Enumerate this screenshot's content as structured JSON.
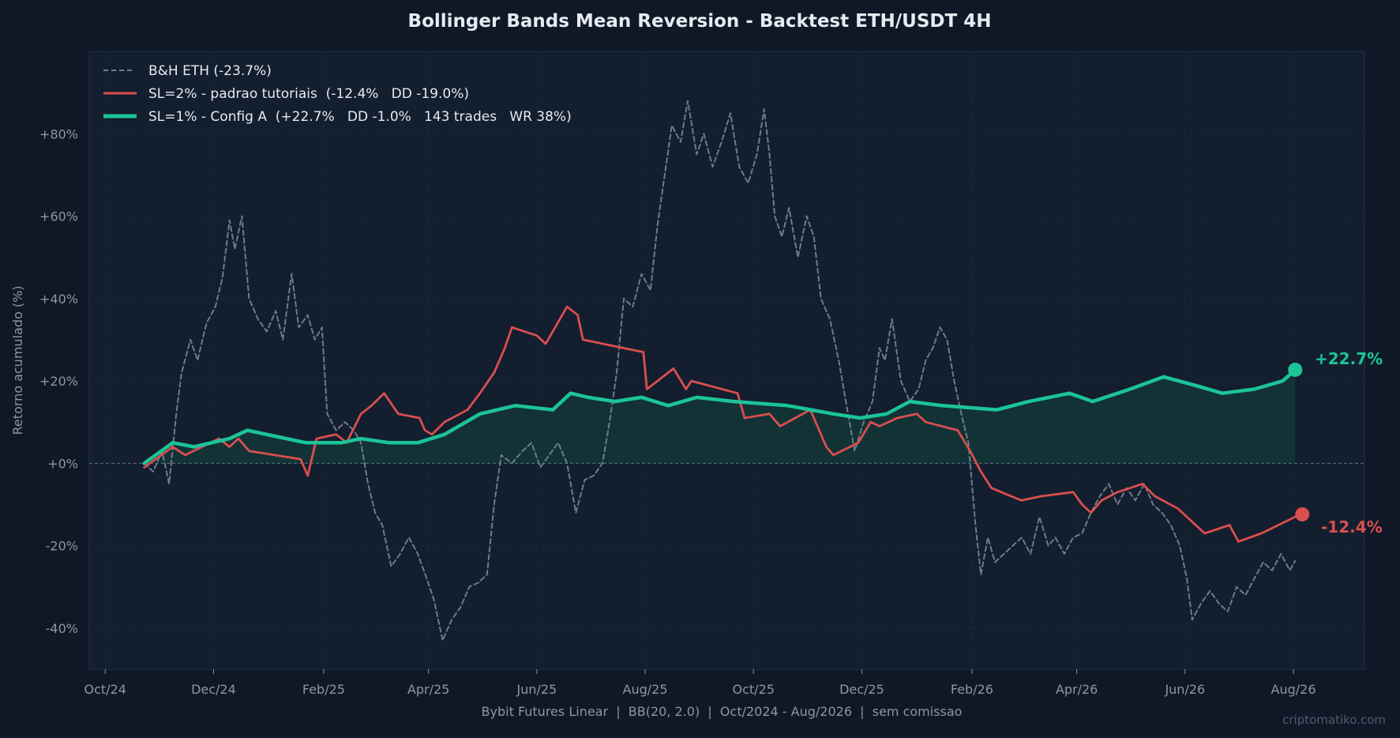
{
  "page": {
    "title": "Bollinger Bands Mean Reversion - Backtest ETH/USDT 4H",
    "caption": "Bybit Futures Linear  |  BB(20, 2.0)  |  Oct/2024 - Aug/2026  |  sem comissao",
    "watermark": "criptomatiko.com"
  },
  "colors": {
    "background": "#0f1826",
    "plot_background": "#131e2e",
    "grid": "#1e2b3c",
    "axis_text": "#8b97a6",
    "bh": "#6f7b8c",
    "sl2": "#d94f4f",
    "sl1": "#1cc498",
    "fill": "#133a3a"
  },
  "chart_data": {
    "type": "line",
    "title": "Bollinger Bands Mean Reversion - Backtest ETH/USDT 4H",
    "xlabel": "",
    "ylabel": "Retorno acumulado (%)",
    "x_range": [
      "2024-09-22",
      "2026-09-10"
    ],
    "ylim": [
      -50,
      100
    ],
    "x_ticks": [
      {
        "date": "2024-10-01",
        "label": "Oct/24"
      },
      {
        "date": "2024-12-01",
        "label": "Dec/24"
      },
      {
        "date": "2025-02-01",
        "label": "Feb/25"
      },
      {
        "date": "2025-04-01",
        "label": "Apr/25"
      },
      {
        "date": "2025-06-01",
        "label": "Jun/25"
      },
      {
        "date": "2025-08-01",
        "label": "Aug/25"
      },
      {
        "date": "2025-10-01",
        "label": "Oct/25"
      },
      {
        "date": "2025-12-01",
        "label": "Dec/25"
      },
      {
        "date": "2026-02-01",
        "label": "Feb/26"
      },
      {
        "date": "2026-04-01",
        "label": "Apr/26"
      },
      {
        "date": "2026-06-01",
        "label": "Jun/26"
      },
      {
        "date": "2026-08-01",
        "label": "Aug/26"
      }
    ],
    "y_ticks": [
      {
        "value": -40,
        "label": "-40%"
      },
      {
        "value": -20,
        "label": "-20%"
      },
      {
        "value": 0,
        "label": "+0%"
      },
      {
        "value": 20,
        "label": "+20%"
      },
      {
        "value": 40,
        "label": "+40%"
      },
      {
        "value": 60,
        "label": "+60%"
      },
      {
        "value": 80,
        "label": "+80%"
      }
    ],
    "grid": true,
    "legend_position": "top-left",
    "series": [
      {
        "key": "bh",
        "name": "B&H ETH (-23.7%)",
        "style": "dashed",
        "points": [
          [
            "2024-10-23",
            0
          ],
          [
            "2024-10-28",
            -2
          ],
          [
            "2024-11-02",
            3
          ],
          [
            "2024-11-06",
            -5
          ],
          [
            "2024-11-10",
            12
          ],
          [
            "2024-11-13",
            22
          ],
          [
            "2024-11-18",
            30
          ],
          [
            "2024-11-22",
            25
          ],
          [
            "2024-11-27",
            34
          ],
          [
            "2024-12-02",
            38
          ],
          [
            "2024-12-06",
            45
          ],
          [
            "2024-12-10",
            59
          ],
          [
            "2024-12-13",
            52
          ],
          [
            "2024-12-17",
            60
          ],
          [
            "2024-12-21",
            40
          ],
          [
            "2024-12-26",
            35
          ],
          [
            "2024-12-31",
            32
          ],
          [
            "2025-01-05",
            37
          ],
          [
            "2025-01-09",
            30
          ],
          [
            "2025-01-14",
            46
          ],
          [
            "2025-01-18",
            33
          ],
          [
            "2025-01-23",
            36
          ],
          [
            "2025-01-27",
            30
          ],
          [
            "2025-01-31",
            33
          ],
          [
            "2025-02-03",
            12
          ],
          [
            "2025-02-08",
            8
          ],
          [
            "2025-02-13",
            10
          ],
          [
            "2025-02-18",
            8
          ],
          [
            "2025-02-22",
            5
          ],
          [
            "2025-02-26",
            -5
          ],
          [
            "2025-03-02",
            -12
          ],
          [
            "2025-03-06",
            -15
          ],
          [
            "2025-03-11",
            -25
          ],
          [
            "2025-03-16",
            -22
          ],
          [
            "2025-03-21",
            -18
          ],
          [
            "2025-03-26",
            -22
          ],
          [
            "2025-03-31",
            -28
          ],
          [
            "2025-04-04",
            -33
          ],
          [
            "2025-04-09",
            -43
          ],
          [
            "2025-04-14",
            -38
          ],
          [
            "2025-04-19",
            -35
          ],
          [
            "2025-04-24",
            -30
          ],
          [
            "2025-04-29",
            -29
          ],
          [
            "2025-05-04",
            -27
          ],
          [
            "2025-05-08",
            -10
          ],
          [
            "2025-05-12",
            2
          ],
          [
            "2025-05-18",
            0
          ],
          [
            "2025-05-24",
            3
          ],
          [
            "2025-05-29",
            5
          ],
          [
            "2025-06-03",
            -1
          ],
          [
            "2025-06-08",
            2
          ],
          [
            "2025-06-13",
            5
          ],
          [
            "2025-06-18",
            0
          ],
          [
            "2025-06-23",
            -12
          ],
          [
            "2025-06-28",
            -4
          ],
          [
            "2025-07-03",
            -3
          ],
          [
            "2025-07-08",
            0
          ],
          [
            "2025-07-12",
            10
          ],
          [
            "2025-07-16",
            22
          ],
          [
            "2025-07-20",
            40
          ],
          [
            "2025-07-25",
            38
          ],
          [
            "2025-07-30",
            46
          ],
          [
            "2025-08-04",
            42
          ],
          [
            "2025-08-08",
            58
          ],
          [
            "2025-08-12",
            70
          ],
          [
            "2025-08-16",
            82
          ],
          [
            "2025-08-21",
            78
          ],
          [
            "2025-08-25",
            88
          ],
          [
            "2025-08-30",
            75
          ],
          [
            "2025-09-03",
            80
          ],
          [
            "2025-09-08",
            72
          ],
          [
            "2025-09-13",
            78
          ],
          [
            "2025-09-18",
            85
          ],
          [
            "2025-09-23",
            72
          ],
          [
            "2025-09-28",
            68
          ],
          [
            "2025-10-03",
            75
          ],
          [
            "2025-10-07",
            86
          ],
          [
            "2025-10-10",
            75
          ],
          [
            "2025-10-13",
            60
          ],
          [
            "2025-10-17",
            55
          ],
          [
            "2025-10-21",
            62
          ],
          [
            "2025-10-26",
            50
          ],
          [
            "2025-10-31",
            60
          ],
          [
            "2025-11-04",
            55
          ],
          [
            "2025-11-08",
            40
          ],
          [
            "2025-11-13",
            35
          ],
          [
            "2025-11-18",
            25
          ],
          [
            "2025-11-22",
            15
          ],
          [
            "2025-11-27",
            3
          ],
          [
            "2025-12-02",
            10
          ],
          [
            "2025-12-07",
            15
          ],
          [
            "2025-12-11",
            28
          ],
          [
            "2025-12-14",
            25
          ],
          [
            "2025-12-18",
            35
          ],
          [
            "2025-12-23",
            20
          ],
          [
            "2025-12-28",
            15
          ],
          [
            "2026-01-02",
            18
          ],
          [
            "2026-01-06",
            25
          ],
          [
            "2026-01-10",
            28
          ],
          [
            "2026-01-14",
            33
          ],
          [
            "2026-01-18",
            30
          ],
          [
            "2026-01-22",
            20
          ],
          [
            "2026-01-26",
            12
          ],
          [
            "2026-01-30",
            5
          ],
          [
            "2026-02-03",
            -15
          ],
          [
            "2026-02-06",
            -27
          ],
          [
            "2026-02-10",
            -18
          ],
          [
            "2026-02-14",
            -24
          ],
          [
            "2026-02-19",
            -22
          ],
          [
            "2026-02-24",
            -20
          ],
          [
            "2026-03-01",
            -18
          ],
          [
            "2026-03-06",
            -22
          ],
          [
            "2026-03-11",
            -13
          ],
          [
            "2026-03-16",
            -20
          ],
          [
            "2026-03-20",
            -18
          ],
          [
            "2026-03-25",
            -22
          ],
          [
            "2026-03-30",
            -18
          ],
          [
            "2026-04-04",
            -17
          ],
          [
            "2026-04-09",
            -12
          ],
          [
            "2026-04-14",
            -8
          ],
          [
            "2026-04-19",
            -5
          ],
          [
            "2026-04-24",
            -10
          ],
          [
            "2026-04-29",
            -6
          ],
          [
            "2026-05-04",
            -9
          ],
          [
            "2026-05-09",
            -5
          ],
          [
            "2026-05-14",
            -10
          ],
          [
            "2026-05-19",
            -12
          ],
          [
            "2026-05-24",
            -15
          ],
          [
            "2026-05-29",
            -20
          ],
          [
            "2026-06-02",
            -28
          ],
          [
            "2026-06-05",
            -38
          ],
          [
            "2026-06-10",
            -34
          ],
          [
            "2026-06-15",
            -31
          ],
          [
            "2026-06-20",
            -34
          ],
          [
            "2026-06-25",
            -36
          ],
          [
            "2026-06-30",
            -30
          ],
          [
            "2026-07-05",
            -32
          ],
          [
            "2026-07-10",
            -28
          ],
          [
            "2026-07-15",
            -24
          ],
          [
            "2026-07-20",
            -26
          ],
          [
            "2026-07-25",
            -22
          ],
          [
            "2026-07-30",
            -26
          ],
          [
            "2026-08-02",
            -23.7
          ]
        ]
      },
      {
        "key": "sl2",
        "name": "SL=2% - padrao tutoriais  (-12.4%   DD -19.0%)",
        "style": "solid",
        "points": [
          [
            "2024-10-23",
            -1
          ],
          [
            "2024-11-08",
            4
          ],
          [
            "2024-11-15",
            2
          ],
          [
            "2024-12-04",
            6
          ],
          [
            "2024-12-10",
            4
          ],
          [
            "2024-12-15",
            6
          ],
          [
            "2024-12-21",
            3
          ],
          [
            "2025-01-19",
            1
          ],
          [
            "2025-01-23",
            -3
          ],
          [
            "2025-01-28",
            6
          ],
          [
            "2025-02-08",
            7
          ],
          [
            "2025-02-14",
            5
          ],
          [
            "2025-02-22",
            12
          ],
          [
            "2025-02-28",
            14
          ],
          [
            "2025-03-07",
            17
          ],
          [
            "2025-03-15",
            12
          ],
          [
            "2025-03-27",
            11
          ],
          [
            "2025-03-30",
            8
          ],
          [
            "2025-04-03",
            7
          ],
          [
            "2025-04-10",
            10
          ],
          [
            "2025-04-23",
            13
          ],
          [
            "2025-04-30",
            17
          ],
          [
            "2025-05-08",
            22
          ],
          [
            "2025-05-14",
            28
          ],
          [
            "2025-05-18",
            33
          ],
          [
            "2025-06-01",
            31
          ],
          [
            "2025-06-06",
            29
          ],
          [
            "2025-06-18",
            38
          ],
          [
            "2025-06-24",
            36
          ],
          [
            "2025-06-27",
            30
          ],
          [
            "2025-07-31",
            27
          ],
          [
            "2025-08-02",
            18
          ],
          [
            "2025-08-17",
            23
          ],
          [
            "2025-08-24",
            18
          ],
          [
            "2025-08-27",
            20
          ],
          [
            "2025-09-22",
            17
          ],
          [
            "2025-09-26",
            11
          ],
          [
            "2025-10-10",
            12
          ],
          [
            "2025-10-16",
            9
          ],
          [
            "2025-11-02",
            13
          ],
          [
            "2025-11-11",
            4
          ],
          [
            "2025-11-15",
            2
          ],
          [
            "2025-11-29",
            5
          ],
          [
            "2025-12-06",
            10
          ],
          [
            "2025-12-11",
            9
          ],
          [
            "2025-12-21",
            11
          ],
          [
            "2026-01-01",
            12
          ],
          [
            "2026-01-06",
            10
          ],
          [
            "2026-01-24",
            8
          ],
          [
            "2026-01-31",
            3
          ],
          [
            "2026-02-06",
            -2
          ],
          [
            "2026-02-12",
            -6
          ],
          [
            "2026-02-23",
            -8
          ],
          [
            "2026-03-01",
            -9
          ],
          [
            "2026-03-12",
            -8
          ],
          [
            "2026-03-30",
            -7
          ],
          [
            "2026-04-04",
            -10
          ],
          [
            "2026-04-09",
            -12
          ],
          [
            "2026-04-15",
            -9
          ],
          [
            "2026-04-24",
            -7
          ],
          [
            "2026-05-08",
            -5
          ],
          [
            "2026-05-15",
            -8
          ],
          [
            "2026-05-28",
            -11
          ],
          [
            "2026-06-07",
            -15
          ],
          [
            "2026-06-12",
            -17
          ],
          [
            "2026-06-26",
            -15
          ],
          [
            "2026-07-01",
            -19
          ],
          [
            "2026-07-14",
            -17
          ],
          [
            "2026-08-02",
            -13
          ],
          [
            "2026-08-06",
            -12.4
          ]
        ]
      },
      {
        "key": "sl1",
        "name": "SL=1% - Config A  (+22.7%   DD -1.0%   143 trades   WR 38%)",
        "style": "solid",
        "points": [
          [
            "2024-10-23",
            0
          ],
          [
            "2024-11-08",
            5
          ],
          [
            "2024-11-20",
            4
          ],
          [
            "2024-12-10",
            6
          ],
          [
            "2024-12-20",
            8
          ],
          [
            "2025-01-22",
            5
          ],
          [
            "2025-02-11",
            5
          ],
          [
            "2025-02-22",
            6
          ],
          [
            "2025-03-10",
            5
          ],
          [
            "2025-03-26",
            5
          ],
          [
            "2025-04-10",
            7
          ],
          [
            "2025-04-30",
            12
          ],
          [
            "2025-05-20",
            14
          ],
          [
            "2025-06-10",
            13
          ],
          [
            "2025-06-20",
            17
          ],
          [
            "2025-06-30",
            16
          ],
          [
            "2025-07-15",
            15
          ],
          [
            "2025-07-30",
            16
          ],
          [
            "2025-08-14",
            14
          ],
          [
            "2025-08-30",
            16
          ],
          [
            "2025-09-20",
            15
          ],
          [
            "2025-10-20",
            14
          ],
          [
            "2025-11-15",
            12
          ],
          [
            "2025-11-30",
            11
          ],
          [
            "2025-12-15",
            12
          ],
          [
            "2025-12-28",
            15
          ],
          [
            "2026-01-15",
            14
          ],
          [
            "2026-02-15",
            13
          ],
          [
            "2026-03-05",
            15
          ],
          [
            "2026-03-28",
            17
          ],
          [
            "2026-04-10",
            15
          ],
          [
            "2026-05-01",
            18
          ],
          [
            "2026-05-20",
            21
          ],
          [
            "2026-06-06",
            19
          ],
          [
            "2026-06-22",
            17
          ],
          [
            "2026-07-10",
            18
          ],
          [
            "2026-07-26",
            20
          ],
          [
            "2026-08-02",
            22.7
          ]
        ]
      }
    ],
    "annotations": [
      {
        "series": "sl1",
        "date": "2026-08-02",
        "value": 22.7,
        "label": "+22.7%"
      },
      {
        "series": "sl2",
        "date": "2026-08-06",
        "value": -12.4,
        "label": "-12.4%"
      }
    ]
  }
}
